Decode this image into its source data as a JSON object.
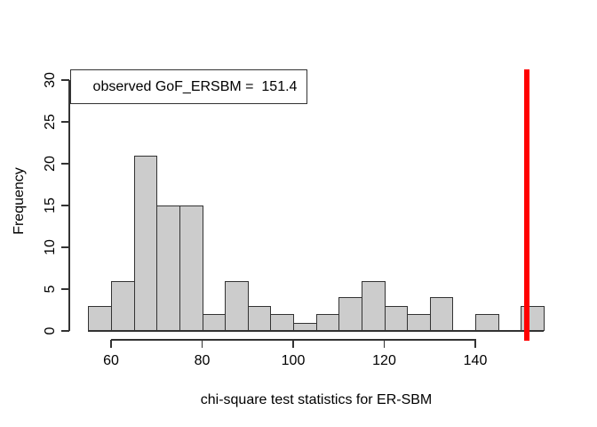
{
  "chart_data": {
    "type": "bar",
    "subtype": "histogram",
    "title": "",
    "xlabel": "chi-square test statistics for ER-SBM",
    "ylabel": "Frequency",
    "bin_start": 55,
    "bin_width": 5,
    "bin_edges": [
      55,
      60,
      65,
      70,
      75,
      80,
      85,
      90,
      95,
      100,
      105,
      110,
      115,
      120,
      125,
      130,
      135,
      140,
      145,
      150,
      155
    ],
    "frequencies": [
      3,
      6,
      21,
      15,
      15,
      2,
      6,
      3,
      2,
      1,
      2,
      4,
      6,
      3,
      2,
      4,
      0,
      2,
      0,
      3
    ],
    "x_ticks": [
      60,
      80,
      100,
      120,
      140
    ],
    "y_ticks": [
      0,
      5,
      10,
      15,
      20,
      25,
      30
    ],
    "xlim": [
      55,
      155
    ],
    "ylim": [
      0,
      30
    ],
    "grid": false,
    "legend": {
      "label": "observed GoF_ERSBM =  151.4",
      "position": "topleft"
    },
    "observed_value_line": {
      "value": 151.4,
      "orientation": "vertical",
      "color": "#ff0000"
    },
    "colors": {
      "bar_fill": "#cccccc",
      "bar_border": "#333333",
      "axis": "#333333",
      "text": "#000000",
      "background": "#ffffff"
    }
  }
}
